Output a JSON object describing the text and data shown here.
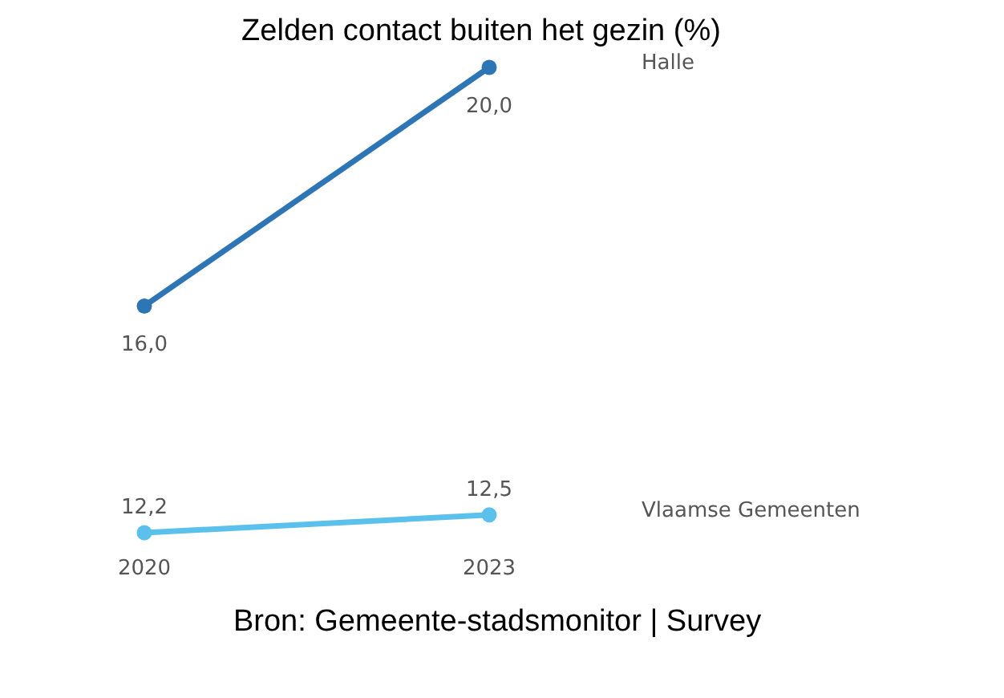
{
  "chart_data": {
    "type": "line",
    "title": "Zelden contact buiten het gezin (%)",
    "categories": [
      "2020",
      "2023"
    ],
    "marker": "circle",
    "legend": false,
    "grid": false,
    "series": [
      {
        "name": "Halle",
        "color": "#2e75b6",
        "values": [
          16.0,
          20.0
        ],
        "value_labels": [
          "16,0",
          "20,0"
        ]
      },
      {
        "name": "Vlaamse Gemeenten",
        "color": "#5bc0eb",
        "values": [
          12.2,
          12.5
        ],
        "value_labels": [
          "12,2",
          "12,5"
        ]
      }
    ],
    "annotations": [
      "Bron: Gemeente-stadsmonitor | Survey"
    ]
  }
}
